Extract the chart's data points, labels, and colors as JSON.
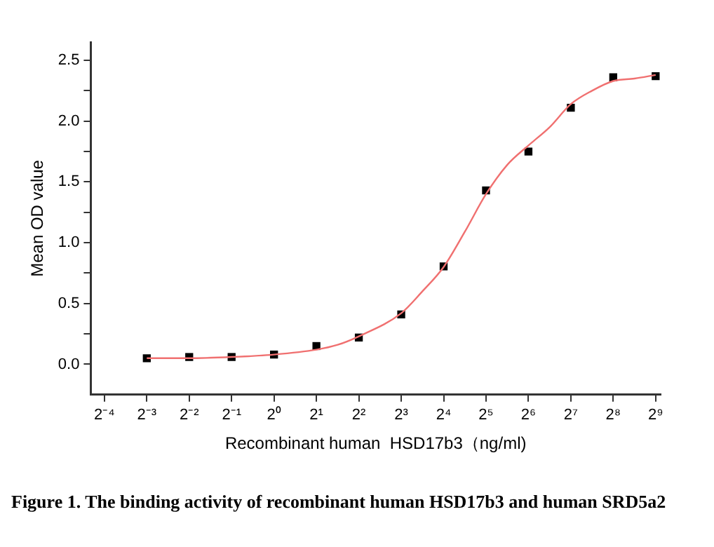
{
  "chart_data": {
    "type": "scatter",
    "xlabel": "Recombinant human  HSD17b3（ng/ml)",
    "ylabel": "Mean OD value",
    "annotations": [
      "Figure 1. The binding activity of recombinant human HSD17b3 and human SRD5a2"
    ],
    "log": "x",
    "grid": false,
    "legend": false,
    "xlim": [
      0.05,
      556
    ],
    "xticks": [
      {
        "value": 0.0625,
        "label": "2⁻⁴"
      },
      {
        "value": 0.125,
        "label": "2⁻³"
      },
      {
        "value": 0.25,
        "label": "2⁻²"
      },
      {
        "value": 0.5,
        "label": "2⁻¹"
      },
      {
        "value": 1,
        "label": "2⁰"
      },
      {
        "value": 2,
        "label": "2¹"
      },
      {
        "value": 4,
        "label": "2²"
      },
      {
        "value": 8,
        "label": "2³"
      },
      {
        "value": 16,
        "label": "2⁴"
      },
      {
        "value": 32,
        "label": "2⁵"
      },
      {
        "value": 64,
        "label": "2⁶"
      },
      {
        "value": 128,
        "label": "2⁷"
      },
      {
        "value": 256,
        "label": "2⁸"
      },
      {
        "value": 512,
        "label": "2⁹"
      }
    ],
    "ylim": [
      -0.25,
      2.65
    ],
    "yticks": [
      {
        "value": 0,
        "label": "0.0"
      },
      {
        "value": 0.25,
        "label": null
      },
      {
        "value": 0.5,
        "label": "0.5"
      },
      {
        "value": 0.75,
        "label": null
      },
      {
        "value": 1,
        "label": "1.0"
      },
      {
        "value": 1.25,
        "label": null
      },
      {
        "value": 1.5,
        "label": "1.5"
      },
      {
        "value": 1.75,
        "label": null
      },
      {
        "value": 2,
        "label": "2.0"
      },
      {
        "value": 2.25,
        "label": null
      },
      {
        "value": 2.5,
        "label": "2.5"
      }
    ],
    "series": [
      {
        "type": "line",
        "color": "#f07070",
        "marker": "none",
        "line_style": "solid",
        "x": [
          0.125,
          0.25,
          0.5,
          1,
          2,
          2.83,
          4,
          8,
          11.31,
          16,
          22.63,
          32,
          45.25,
          64,
          90.51,
          128,
          181.02,
          256,
          362.04,
          512
        ],
        "values": [
          0.05,
          0.05,
          0.06,
          0.08,
          0.12,
          0.16,
          0.23,
          0.42,
          0.6,
          0.8,
          1.09,
          1.4,
          1.64,
          1.8,
          1.95,
          2.14,
          2.25,
          2.33,
          2.35,
          2.38
        ]
      },
      {
        "type": "scatter",
        "color": "#000000",
        "marker": "square",
        "x": [
          0.125,
          0.25,
          0.5,
          1,
          2,
          4,
          8,
          16,
          32,
          64,
          128,
          256,
          512
        ],
        "values": [
          0.05,
          0.06,
          0.06,
          0.08,
          0.15,
          0.22,
          0.41,
          0.805,
          1.43,
          1.75,
          2.11,
          2.36,
          2.37
        ]
      }
    ]
  }
}
